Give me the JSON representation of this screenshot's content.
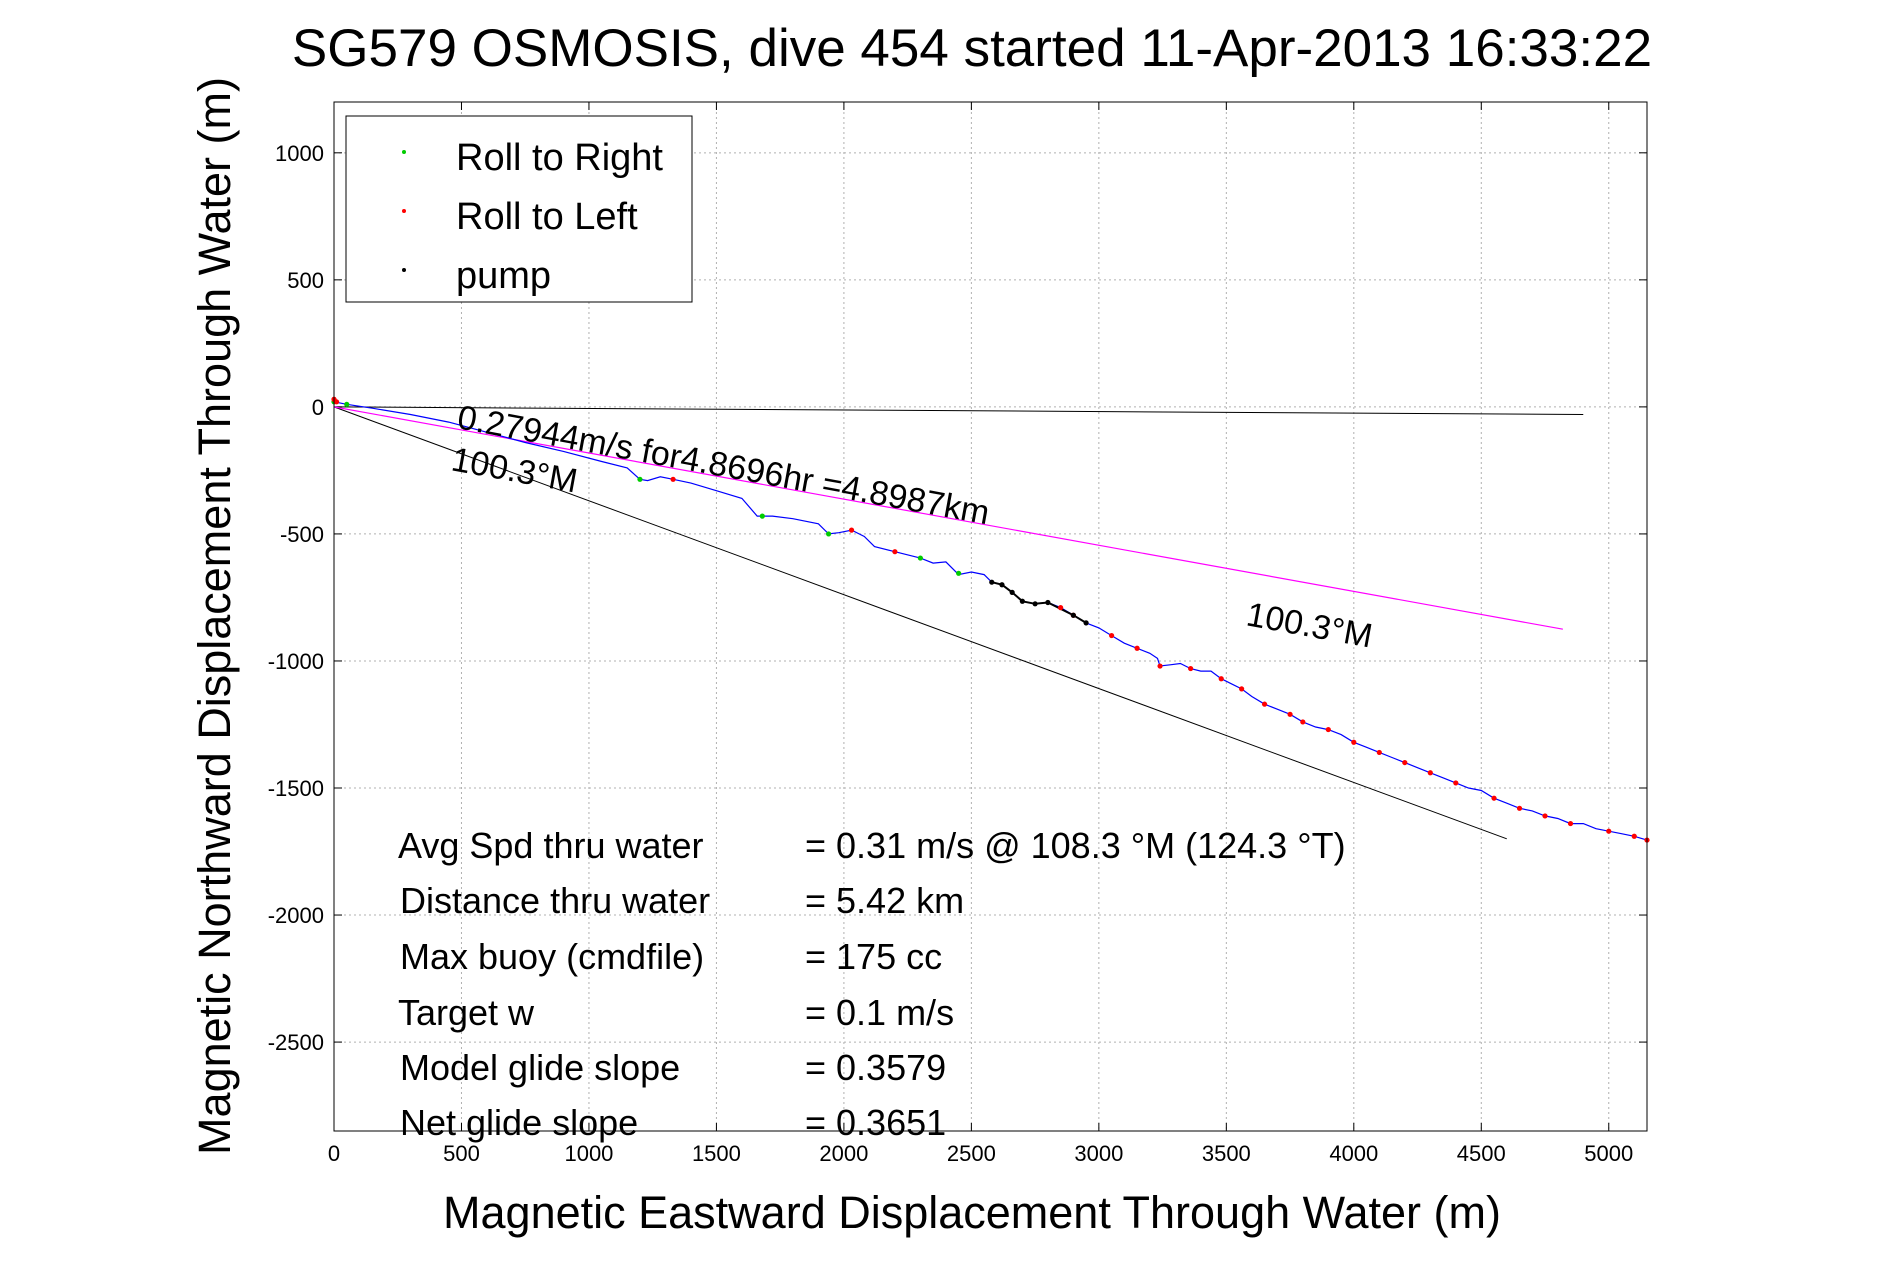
{
  "chart_data": {
    "type": "line",
    "title": "SG579 OSMOSIS, dive 454 started 11-Apr-2013 16:33:22",
    "xlabel": "Magnetic Eastward Displacement Through Water (m)",
    "ylabel": "Magnetic Northward Displacement Through Water (m)",
    "xlim": [
      0,
      5150
    ],
    "ylim": [
      -2850,
      1200
    ],
    "xticks": [
      0,
      500,
      1000,
      1500,
      2000,
      2500,
      3000,
      3500,
      4000,
      4500,
      5000
    ],
    "yticks": [
      1000,
      500,
      0,
      -500,
      -1000,
      -1500,
      -2000,
      -2500
    ],
    "grid": true,
    "legend_position": "top-left",
    "colors": {
      "right": "#00cc00",
      "left": "#ff0000",
      "pump": "#000000",
      "track": "#0000ff",
      "avg": "#ff00ff",
      "heading": "#000000"
    },
    "legend": [
      {
        "label": "Roll to Right",
        "color": "#00cc00"
      },
      {
        "label": "Roll to Left",
        "color": "#ff0000"
      },
      {
        "label": "pump",
        "color": "#000000"
      }
    ],
    "track": [
      [
        0,
        20
      ],
      [
        50,
        10
      ],
      [
        150,
        -5
      ],
      [
        300,
        -30
      ],
      [
        450,
        -60
      ],
      [
        600,
        -100
      ],
      [
        750,
        -140
      ],
      [
        900,
        -175
      ],
      [
        1050,
        -215
      ],
      [
        1150,
        -240
      ],
      [
        1200,
        -285
      ],
      [
        1230,
        -290
      ],
      [
        1280,
        -275
      ],
      [
        1330,
        -285
      ],
      [
        1400,
        -300
      ],
      [
        1500,
        -330
      ],
      [
        1600,
        -360
      ],
      [
        1660,
        -430
      ],
      [
        1720,
        -430
      ],
      [
        1800,
        -440
      ],
      [
        1900,
        -460
      ],
      [
        1940,
        -500
      ],
      [
        1980,
        -495
      ],
      [
        2030,
        -485
      ],
      [
        2080,
        -510
      ],
      [
        2120,
        -550
      ],
      [
        2200,
        -570
      ],
      [
        2300,
        -595
      ],
      [
        2350,
        -615
      ],
      [
        2400,
        -610
      ],
      [
        2450,
        -660
      ],
      [
        2500,
        -650
      ],
      [
        2550,
        -660
      ],
      [
        2580,
        -690
      ],
      [
        2620,
        -700
      ],
      [
        2660,
        -730
      ],
      [
        2700,
        -765
      ],
      [
        2750,
        -775
      ],
      [
        2800,
        -770
      ],
      [
        2850,
        -790
      ],
      [
        2900,
        -820
      ],
      [
        2950,
        -850
      ],
      [
        3000,
        -870
      ],
      [
        3050,
        -900
      ],
      [
        3100,
        -930
      ],
      [
        3150,
        -950
      ],
      [
        3200,
        -970
      ],
      [
        3230,
        -990
      ],
      [
        3240,
        -1020
      ],
      [
        3280,
        -1015
      ],
      [
        3320,
        -1010
      ],
      [
        3360,
        -1030
      ],
      [
        3400,
        -1040
      ],
      [
        3440,
        -1040
      ],
      [
        3480,
        -1070
      ],
      [
        3520,
        -1090
      ],
      [
        3560,
        -1110
      ],
      [
        3600,
        -1140
      ],
      [
        3650,
        -1170
      ],
      [
        3700,
        -1190
      ],
      [
        3750,
        -1210
      ],
      [
        3800,
        -1240
      ],
      [
        3850,
        -1260
      ],
      [
        3900,
        -1270
      ],
      [
        3950,
        -1290
      ],
      [
        4000,
        -1320
      ],
      [
        4050,
        -1340
      ],
      [
        4100,
        -1360
      ],
      [
        4150,
        -1380
      ],
      [
        4200,
        -1400
      ],
      [
        4250,
        -1420
      ],
      [
        4300,
        -1440
      ],
      [
        4350,
        -1460
      ],
      [
        4400,
        -1480
      ],
      [
        4450,
        -1500
      ],
      [
        4500,
        -1510
      ],
      [
        4550,
        -1540
      ],
      [
        4600,
        -1560
      ],
      [
        4650,
        -1580
      ],
      [
        4700,
        -1590
      ],
      [
        4750,
        -1610
      ],
      [
        4800,
        -1620
      ],
      [
        4850,
        -1640
      ],
      [
        4900,
        -1640
      ],
      [
        4950,
        -1660
      ],
      [
        5000,
        -1670
      ],
      [
        5050,
        -1680
      ],
      [
        5100,
        -1690
      ],
      [
        5150,
        -1705
      ]
    ],
    "roll_right_points": [
      [
        0,
        20
      ],
      [
        50,
        10
      ],
      [
        1200,
        -285
      ],
      [
        1680,
        -430
      ],
      [
        1940,
        -500
      ],
      [
        2300,
        -595
      ],
      [
        2450,
        -655
      ]
    ],
    "roll_left_points": [
      [
        0,
        30
      ],
      [
        10,
        20
      ],
      [
        1330,
        -285
      ],
      [
        2030,
        -485
      ],
      [
        2200,
        -570
      ],
      [
        2850,
        -790
      ],
      [
        2900,
        -820
      ],
      [
        3050,
        -900
      ],
      [
        3150,
        -950
      ],
      [
        3240,
        -1020
      ],
      [
        3360,
        -1030
      ],
      [
        3480,
        -1070
      ],
      [
        3560,
        -1110
      ],
      [
        3650,
        -1170
      ],
      [
        3750,
        -1210
      ],
      [
        3800,
        -1240
      ],
      [
        3900,
        -1270
      ],
      [
        4000,
        -1320
      ],
      [
        4100,
        -1360
      ],
      [
        4200,
        -1400
      ],
      [
        4300,
        -1440
      ],
      [
        4400,
        -1480
      ],
      [
        4550,
        -1540
      ],
      [
        4650,
        -1580
      ],
      [
        4750,
        -1610
      ],
      [
        4850,
        -1640
      ],
      [
        5000,
        -1670
      ],
      [
        5100,
        -1690
      ],
      [
        5150,
        -1705
      ]
    ],
    "pump_points": [
      [
        2580,
        -690
      ],
      [
        2620,
        -700
      ],
      [
        2660,
        -730
      ],
      [
        2700,
        -765
      ],
      [
        2750,
        -775
      ],
      [
        2800,
        -770
      ],
      [
        2900,
        -820
      ],
      [
        2950,
        -850
      ]
    ],
    "avg_line": [
      [
        0,
        0
      ],
      [
        4820,
        -875
      ]
    ],
    "heading_line_1": [
      [
        0,
        0
      ],
      [
        4900,
        -30
      ]
    ],
    "heading_line_2": [
      [
        0,
        0
      ],
      [
        4600,
        -1700
      ]
    ],
    "annotations": {
      "speed": "0.27944m/s for4.8696hr =4.8987km",
      "heading_a": "100.3°M",
      "heading_b": "100.3°M"
    },
    "stats": [
      {
        "label": "Avg Spd thru water",
        "value": "=  0.31 m/s @ 108.3 °M (124.3 °T)"
      },
      {
        "label": "Distance thru water",
        "value": "=  5.42 km"
      },
      {
        "label": "Max buoy (cmdfile)",
        "value": "= 175 cc"
      },
      {
        "label": "Target w",
        "value": "= 0.1 m/s"
      },
      {
        "label": "Model glide slope",
        "value": "= 0.3579"
      },
      {
        "label": "Net glide slope",
        "value": "= 0.3651"
      }
    ]
  }
}
